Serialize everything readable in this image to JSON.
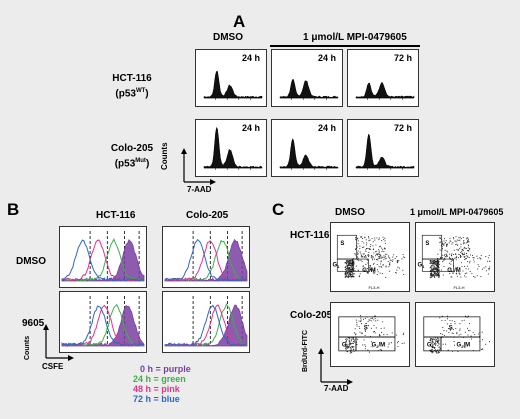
{
  "chart_data": [
    {
      "panel": "A",
      "type": "area",
      "columns": [
        "DMSO",
        "24 h",
        "72 h"
      ],
      "col_group_label": "1 μmol/L MPI-0479605",
      "rows": [
        "HCT-116 (p53WT)",
        "Colo-205 (p53Mut)"
      ],
      "time_labels": [
        [
          "24 h",
          "24 h",
          "72 h"
        ],
        [
          "24 h",
          "24 h",
          "72 h"
        ]
      ],
      "xlabel": "7-AAD",
      "ylabel": "Counts",
      "cell_cycle_profiles": {
        "HCT-116": {
          "DMSO": {
            "G1_peak": 0.28,
            "G2M_peak": 0.12
          },
          "24 h": {
            "G1_peak": 0.18,
            "G2M_peak": 0.17
          },
          "72 h": {
            "G1_peak": 0.15,
            "G2M_peak": 0.15
          }
        },
        "Colo-205": {
          "DMSO": {
            "G1_peak": 0.42,
            "G2M_peak": 0.18
          },
          "24 h": {
            "G1_peak": 0.3,
            "G2M_peak": 0.12
          },
          "72 h": {
            "G1_peak": 0.35,
            "G2M_peak": 0.1
          }
        }
      }
    },
    {
      "panel": "B",
      "type": "line",
      "columns": [
        "HCT-116",
        "Colo-205"
      ],
      "rows": [
        "DMSO",
        "9605"
      ],
      "xlabel": "CSFE",
      "ylabel": "Counts",
      "series": [
        {
          "name": "0 h",
          "color": "#7a3fa0"
        },
        {
          "name": "24 h",
          "color": "#3fae49"
        },
        {
          "name": "48 h",
          "color": "#e0338d"
        },
        {
          "name": "72 h",
          "color": "#2f66c4"
        }
      ]
    },
    {
      "panel": "C",
      "type": "scatter",
      "columns": [
        "DMSO",
        "1 μmol/L MPI-0479605"
      ],
      "rows": [
        "HCT-116",
        "Colo-205"
      ],
      "xlabel": "7-AAD",
      "ylabel": "BrdU-FITC",
      "gates": [
        "S",
        "G1",
        "G2/M"
      ]
    }
  ],
  "figure": {
    "A": {
      "letter": "A",
      "header_dmso": "DMSO",
      "header_drug": "1 μmol/L MPI-0479605",
      "row1_name": "HCT-116",
      "row1_sub": "(p53",
      "row1_sup": "WT",
      "row2_name": "Colo-205",
      "row2_sub": "(p53",
      "row2_sup": "Mut",
      "t_24": "24 h",
      "t_72": "72 h",
      "ylabel": "Counts",
      "xlabel": "7-AAD"
    },
    "B": {
      "letter": "B",
      "col1": "HCT-116",
      "col2": "Colo-205",
      "row1": "DMSO",
      "row2": "9605",
      "ylabel": "Counts",
      "xlabel": "CSFE",
      "legend": [
        "0 h = purple",
        "24 h = green",
        "48 h = pink",
        "72 h = blue"
      ]
    },
    "C": {
      "letter": "C",
      "col1": "DMSO",
      "col2": "1 μmol/L MPI-0479605",
      "row1": "HCT-116",
      "row2": "Colo-205",
      "ylabel": "BrdUrd-FITC",
      "xlabel": "7-AAD",
      "gate_s": "S",
      "gate_g1": "G",
      "gate_g2m": "G",
      "sub1": "1",
      "sub2m": "2",
      "sub2m_rest": "/M",
      "axis_fl3": "FL3-H"
    }
  }
}
